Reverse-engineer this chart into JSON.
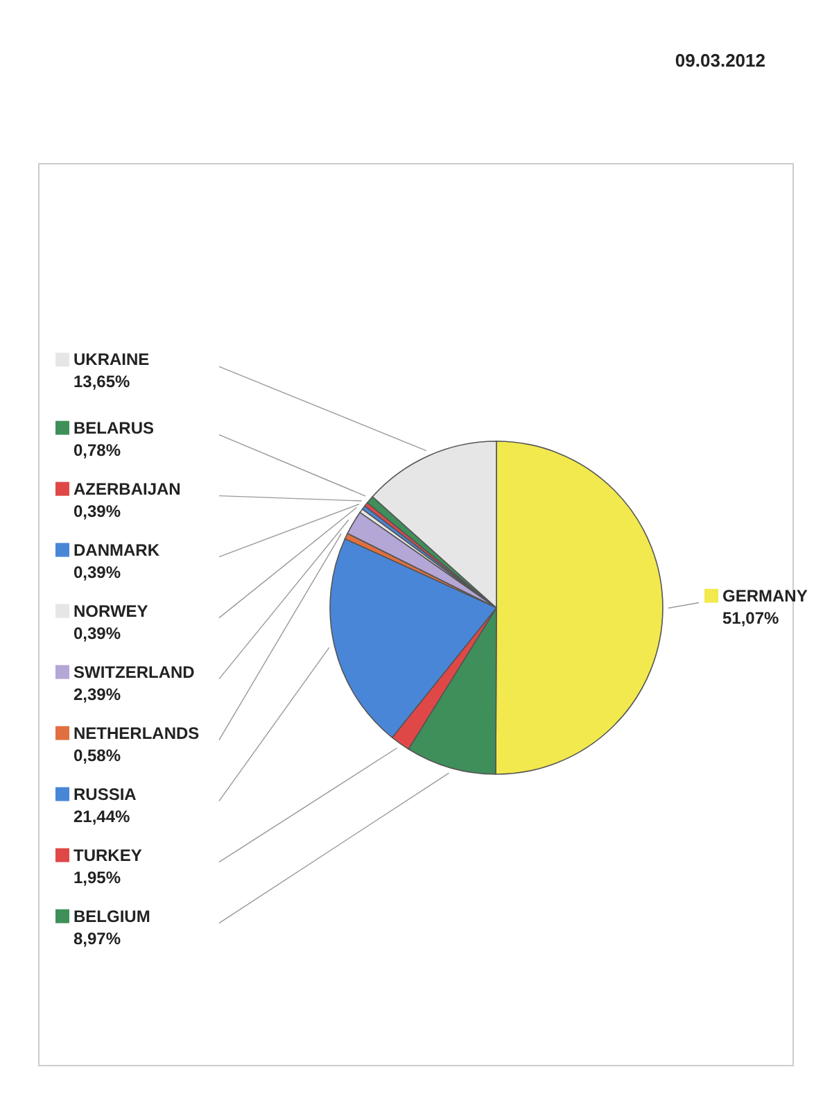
{
  "chart_data": {
    "type": "pie",
    "categories": [
      "GERMANY",
      "BELGIUM",
      "TURKEY",
      "RUSSIA",
      "NETHERLANDS",
      "SWITZERLAND",
      "NORWEY",
      "DANMARK",
      "AZERBAIJAN",
      "BELARUS",
      "UKRAINE"
    ],
    "values": [
      51.07,
      8.97,
      1.95,
      21.44,
      0.58,
      2.39,
      0.39,
      0.39,
      0.39,
      0.78,
      13.65
    ],
    "value_labels": [
      "51,07%",
      "8,97%",
      "1,95%",
      "21,44%",
      "0,58%",
      "2,39%",
      "0,39%",
      "0,39%",
      "0,39%",
      "0,78%",
      "13,65%"
    ],
    "colors": [
      "#f2e94e",
      "#3f8f5a",
      "#e04848",
      "#4a86d8",
      "#e07040",
      "#b4a6d6",
      "#e6e6e6",
      "#4a86d8",
      "#e04848",
      "#3f8f5a",
      "#e6e6e6"
    ],
    "annotations": [
      "09.03.2012"
    ],
    "legend": "left"
  }
}
